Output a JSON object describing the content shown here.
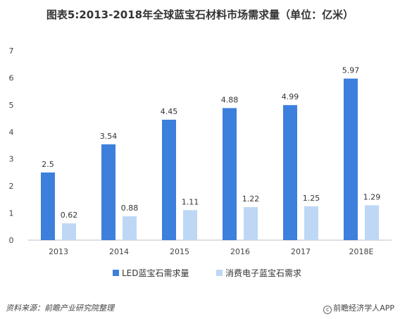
{
  "chart_data": {
    "type": "bar",
    "title": "图表5:2013-2018年全球蓝宝石材料市场需求量（单位：亿米）",
    "categories": [
      "2013",
      "2014",
      "2015",
      "2016",
      "2017",
      "2018E"
    ],
    "series": [
      {
        "name": "LED蓝宝石需求量",
        "values": [
          2.5,
          3.54,
          4.45,
          4.88,
          4.99,
          5.97
        ],
        "labels": [
          "2.5",
          "3.54",
          "4.45",
          "4.88",
          "4.99",
          "5.97"
        ],
        "color": "#3d7fdc"
      },
      {
        "name": "消费电子蓝宝石需求",
        "values": [
          0.62,
          0.88,
          1.11,
          1.22,
          1.25,
          1.29
        ],
        "labels": [
          "0.62",
          "0.88",
          "1.11",
          "1.22",
          "1.25",
          "1.29"
        ],
        "color": "#bdd7f5"
      }
    ],
    "ylim": [
      0,
      7
    ],
    "yticks": [
      "0",
      "1",
      "2",
      "3",
      "4",
      "5",
      "6",
      "7"
    ],
    "grid": false,
    "legend": "bottom"
  },
  "footer": {
    "source": "资料来源：前瞻产业研究院整理",
    "brand": "前瞻经济学人APP",
    "brand_mark": "c"
  }
}
